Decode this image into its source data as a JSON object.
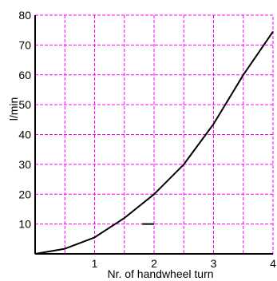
{
  "chart_data": {
    "type": "line",
    "xlabel": "Nr. of handwheel turn",
    "ylabel": "l/min",
    "xlim": [
      0,
      4
    ],
    "ylim": [
      0,
      80
    ],
    "x_ticks": [
      1,
      2,
      3,
      4
    ],
    "y_ticks": [
      10,
      20,
      30,
      40,
      50,
      60,
      70,
      80
    ],
    "grid": true,
    "series": [
      {
        "x": [
          0,
          0.5,
          1,
          1.5,
          2,
          2.5,
          3,
          3.5,
          4
        ],
        "y": [
          0,
          1.7,
          5.5,
          12,
          20,
          30,
          43.5,
          60,
          74.5
        ]
      }
    ],
    "annotations": [
      {
        "type": "dash",
        "x": [
          1.8,
          2.0
        ],
        "y": 10
      }
    ],
    "colors": {
      "grid": "#ff00ff",
      "axis": "#000000",
      "series": "#000000"
    }
  }
}
